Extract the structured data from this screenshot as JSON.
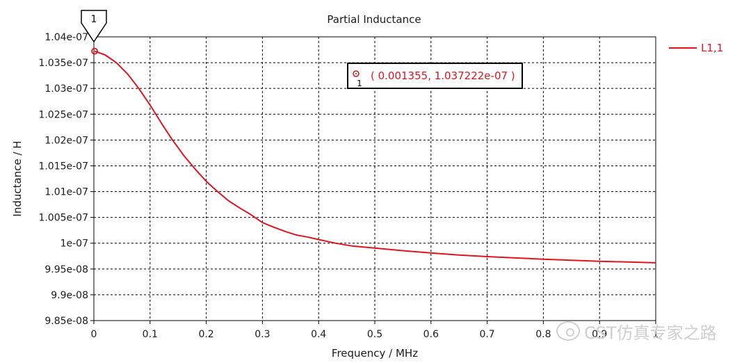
{
  "chart_data": {
    "type": "line",
    "title": "Partial Inductance",
    "xlabel": "Frequency / MHz",
    "ylabel": "Inductance / H",
    "xlim": [
      0,
      1
    ],
    "ylim": [
      9.85e-08,
      1.04e-07
    ],
    "grid": true,
    "legend_position": "right",
    "x_ticks": [
      0,
      0.1,
      0.2,
      0.3,
      0.4,
      0.5,
      0.6,
      0.7,
      0.8,
      0.9,
      1
    ],
    "x_tick_labels": [
      "0",
      "0.1",
      "0.2",
      "0.3",
      "0.4",
      "0.5",
      "0.6",
      "0.7",
      "0.8",
      "0.9",
      "1"
    ],
    "y_ticks": [
      9.85e-08,
      9.9e-08,
      9.95e-08,
      1e-07,
      1.005e-07,
      1.01e-07,
      1.015e-07,
      1.02e-07,
      1.025e-07,
      1.03e-07,
      1.035e-07,
      1.04e-07
    ],
    "y_tick_labels": [
      "9.85e-08",
      "9.9e-08",
      "9.95e-08",
      "1e-07",
      "1.005e-07",
      "1.01e-07",
      "1.015e-07",
      "1.02e-07",
      "1.025e-07",
      "1.03e-07",
      "1.035e-07",
      "1.04e-07"
    ],
    "series": [
      {
        "name": "L1,1",
        "color": "#e0141e",
        "x": [
          0.001355,
          0.02,
          0.04,
          0.06,
          0.08,
          0.1,
          0.12,
          0.14,
          0.16,
          0.18,
          0.2,
          0.22,
          0.24,
          0.26,
          0.28,
          0.3,
          0.32,
          0.34,
          0.36,
          0.38,
          0.4,
          0.43,
          0.46,
          0.5,
          0.55,
          0.6,
          0.65,
          0.7,
          0.75,
          0.8,
          0.85,
          0.9,
          0.95,
          1.0
        ],
        "y": [
          1.037222e-07,
          1.0365e-07,
          1.035e-07,
          1.0328e-07,
          1.03e-07,
          1.0268e-07,
          1.0233e-07,
          1.02e-07,
          1.017e-07,
          1.0144e-07,
          1.012e-07,
          1.01e-07,
          1.0082e-07,
          1.0068e-07,
          1.0055e-07,
          1.004e-07,
          1.0031e-07,
          1.0023e-07,
          1.0016e-07,
          1.0012e-07,
          1.0007e-07,
          1e-07,
          9.9945e-08,
          9.9905e-08,
          9.9855e-08,
          9.981e-08,
          9.977e-08,
          9.974e-08,
          9.9715e-08,
          9.969e-08,
          9.967e-08,
          9.965e-08,
          9.9635e-08,
          9.962e-08
        ]
      }
    ],
    "marker": {
      "id": "1",
      "x": 0.001355,
      "y": 1.037222e-07,
      "label": "( 0.001355, 1.037222e-07 )"
    }
  },
  "watermark": {
    "text": "CST仿真专家之路",
    "icon": "wechat-icon"
  }
}
